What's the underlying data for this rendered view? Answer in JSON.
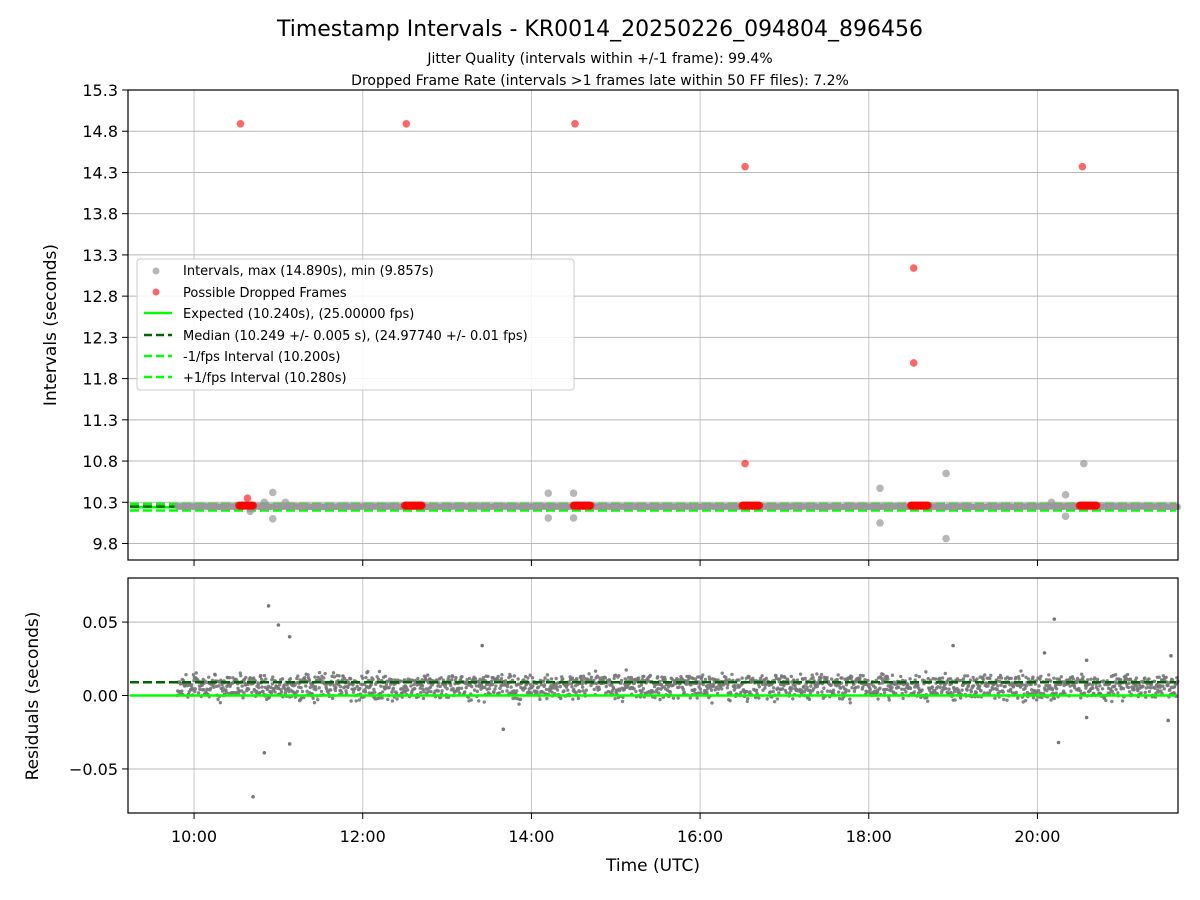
{
  "title": "Timestamp Intervals - KR0014_20250226_094804_896456",
  "subtitle_lines": [
    "Jitter Quality (intervals within +/-1 frame): 99.4%",
    "Dropped Frame Rate (intervals >1 frames late within 50 FF files): 7.2%"
  ],
  "colors": {
    "intervals": "#999999",
    "dropped": "#ff0000",
    "expected": "#00ff00",
    "median": "#006400",
    "residual_points": "#777777",
    "grid": "#b0b0b0"
  },
  "chart_data": [
    {
      "type": "scatter",
      "name": "intervals-panel",
      "xlabel": "",
      "ylabel": "Intervals (seconds)",
      "xlim": [
        "09:13",
        "21:40"
      ],
      "ylim": [
        9.6,
        15.3
      ],
      "yticks": [
        "9.8",
        "10.3",
        "10.8",
        "11.3",
        "11.8",
        "12.3",
        "12.8",
        "13.3",
        "13.8",
        "14.3",
        "14.8",
        "15.3"
      ],
      "grid": true,
      "legend_position": "center-left",
      "legend": [
        "Intervals, max (14.890s), min (9.857s)",
        "Possible Dropped Frames",
        "Expected (10.240s), (25.00000 fps)",
        "Median (10.249 +/- 0.005 s), (24.97740 +/- 0.01 fps)",
        "-1/fps Interval (10.200s)",
        "+1/fps Interval (10.280s)"
      ],
      "lines": {
        "expected": 10.24,
        "median": 10.249,
        "minus_one_frame": 10.2,
        "plus_one_frame": 10.28
      },
      "intervals_extra_points": [
        {
          "x": "10:40",
          "y": 10.22
        },
        {
          "x": "10:40",
          "y": 10.19
        },
        {
          "x": "10:50",
          "y": 10.3
        },
        {
          "x": "10:56",
          "y": 10.42
        },
        {
          "x": "10:56",
          "y": 10.1
        },
        {
          "x": "11:05",
          "y": 10.3
        },
        {
          "x": "14:12",
          "y": 10.41
        },
        {
          "x": "14:12",
          "y": 10.11
        },
        {
          "x": "14:30",
          "y": 10.41
        },
        {
          "x": "14:30",
          "y": 10.11
        },
        {
          "x": "18:08",
          "y": 10.47
        },
        {
          "x": "18:08",
          "y": 10.05
        },
        {
          "x": "18:55",
          "y": 10.65
        },
        {
          "x": "18:55",
          "y": 9.86
        },
        {
          "x": "20:10",
          "y": 10.3
        },
        {
          "x": "20:20",
          "y": 10.39
        },
        {
          "x": "20:20",
          "y": 10.13
        },
        {
          "x": "20:33",
          "y": 10.77
        }
      ],
      "dropped_frames": [
        {
          "x": "10:33",
          "y": 14.89
        },
        {
          "x": "10:38",
          "y": 10.35
        },
        {
          "x": "12:31",
          "y": 14.89
        },
        {
          "x": "14:31",
          "y": 14.89
        },
        {
          "x": "16:32",
          "y": 14.37
        },
        {
          "x": "16:32",
          "y": 10.77
        },
        {
          "x": "18:32",
          "y": 13.14
        },
        {
          "x": "18:32",
          "y": 11.99
        },
        {
          "x": "20:32",
          "y": 14.37
        }
      ],
      "dropped_clusters": [
        {
          "start": "10:32",
          "end": "10:42",
          "y": 10.26
        },
        {
          "start": "12:30",
          "end": "12:42",
          "y": 10.26
        },
        {
          "start": "14:30",
          "end": "14:42",
          "y": 10.26
        },
        {
          "start": "16:30",
          "end": "16:42",
          "y": 10.26
        },
        {
          "start": "18:30",
          "end": "18:42",
          "y": 10.26
        },
        {
          "start": "20:30",
          "end": "20:42",
          "y": 10.26
        }
      ]
    },
    {
      "type": "scatter",
      "name": "residuals-panel",
      "xlabel": "Time (UTC)",
      "ylabel": "Residuals (seconds)",
      "xlim": [
        "09:13",
        "21:40"
      ],
      "ylim": [
        -0.08,
        0.08
      ],
      "xticks": [
        "10:00",
        "12:00",
        "14:00",
        "16:00",
        "18:00",
        "20:00"
      ],
      "yticks": [
        "−0.05",
        "0.00",
        "0.05"
      ],
      "ytick_values": [
        -0.05,
        0.0,
        0.05
      ],
      "grid": true,
      "lines": {
        "expected_residual": 0.0,
        "median_residual": 0.009
      },
      "residual_outliers": [
        {
          "x": "10:53",
          "y": 0.061
        },
        {
          "x": "11:00",
          "y": 0.048
        },
        {
          "x": "11:08",
          "y": 0.04
        },
        {
          "x": "10:50",
          "y": -0.039
        },
        {
          "x": "10:42",
          "y": -0.069
        },
        {
          "x": "11:08",
          "y": -0.033
        },
        {
          "x": "20:12",
          "y": 0.052
        },
        {
          "x": "20:15",
          "y": -0.032
        },
        {
          "x": "19:00",
          "y": 0.034
        },
        {
          "x": "13:25",
          "y": 0.034
        },
        {
          "x": "13:40",
          "y": -0.023
        },
        {
          "x": "21:35",
          "y": 0.027
        },
        {
          "x": "21:33",
          "y": -0.017
        },
        {
          "x": "20:05",
          "y": 0.029
        },
        {
          "x": "20:35",
          "y": 0.024
        },
        {
          "x": "20:35",
          "y": -0.015
        }
      ]
    }
  ]
}
